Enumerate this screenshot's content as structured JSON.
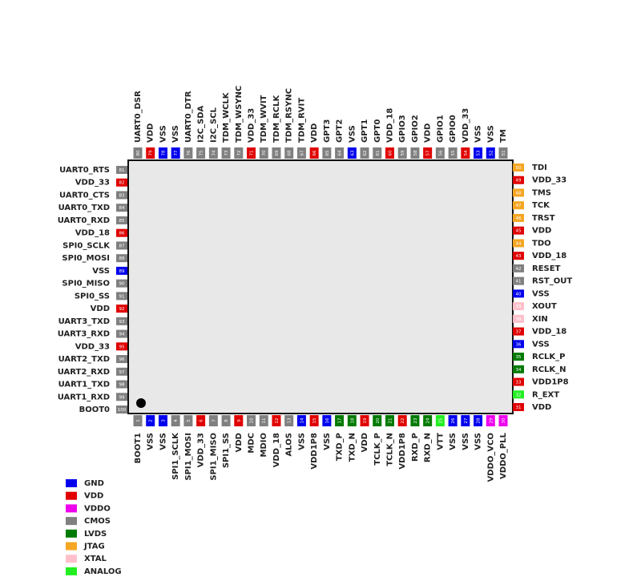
{
  "pins": [
    {
      "number": 1,
      "name": "BOOT1",
      "color": "#808080"
    },
    {
      "number": 2,
      "name": "VSS",
      "color": "#0000ee"
    },
    {
      "number": 3,
      "name": "VSS",
      "color": "#0000ee"
    },
    {
      "number": 4,
      "name": "SPI1_SCLK",
      "color": "#808080"
    },
    {
      "number": 5,
      "name": "SPI1_MOSI",
      "color": "#808080"
    },
    {
      "number": 6,
      "name": "VDD_33",
      "color": "#e00000"
    },
    {
      "number": 7,
      "name": "SPI1_MISO",
      "color": "#808080"
    },
    {
      "number": 8,
      "name": "SPI1_SS",
      "color": "#808080"
    },
    {
      "number": 9,
      "name": "VDD",
      "color": "#e00000"
    },
    {
      "number": 10,
      "name": "MDC",
      "color": "#808080"
    },
    {
      "number": 11,
      "name": "MDIO",
      "color": "#808080"
    },
    {
      "number": 12,
      "name": "VDD_18",
      "color": "#e00000"
    },
    {
      "number": 13,
      "name": "ALOS",
      "color": "#808080"
    },
    {
      "number": 14,
      "name": "VSS",
      "color": "#0000ee"
    },
    {
      "number": 15,
      "name": "VDD1P8",
      "color": "#e00000"
    },
    {
      "number": 16,
      "name": "VSS",
      "color": "#0000ee"
    },
    {
      "number": 17,
      "name": "TXD_P",
      "color": "#007a00"
    },
    {
      "number": 18,
      "name": "TXD_N",
      "color": "#007a00"
    },
    {
      "number": 19,
      "name": "VDD",
      "color": "#e00000"
    },
    {
      "number": 20,
      "name": "TCLK_P",
      "color": "#007a00"
    },
    {
      "number": 21,
      "name": "TCLK_N",
      "color": "#007a00"
    },
    {
      "number": 22,
      "name": "VDD1P8",
      "color": "#e00000"
    },
    {
      "number": 23,
      "name": "RXD_P",
      "color": "#007a00"
    },
    {
      "number": 24,
      "name": "RXD_N",
      "color": "#007a00"
    },
    {
      "number": 25,
      "name": "VTT",
      "color": "#22ee22"
    },
    {
      "number": 26,
      "name": "VSS",
      "color": "#0000ee"
    },
    {
      "number": 27,
      "name": "VSS",
      "color": "#0000ee"
    },
    {
      "number": 28,
      "name": "VSS",
      "color": "#0000ee"
    },
    {
      "number": 29,
      "name": "VDDO_VCO",
      "color": "#ee00ee"
    },
    {
      "number": 30,
      "name": "VDDO_PLL",
      "color": "#ee00ee"
    },
    {
      "number": 31,
      "name": "VDD",
      "color": "#e00000"
    },
    {
      "number": 32,
      "name": "R_EXT",
      "color": "#22ee22"
    },
    {
      "number": 33,
      "name": "VDD1P8",
      "color": "#e00000"
    },
    {
      "number": 34,
      "name": "RCLK_N",
      "color": "#007a00"
    },
    {
      "number": 35,
      "name": "RCLK_P",
      "color": "#007a00"
    },
    {
      "number": 36,
      "name": "VSS",
      "color": "#0000ee"
    },
    {
      "number": 37,
      "name": "VDD_18",
      "color": "#e00000"
    },
    {
      "number": 38,
      "name": "XIN",
      "color": "#ffc0cb"
    },
    {
      "number": 39,
      "name": "XOUT",
      "color": "#ffc0cb"
    },
    {
      "number": 40,
      "name": "VSS",
      "color": "#0000ee"
    },
    {
      "number": 41,
      "name": "RST_OUT",
      "color": "#808080"
    },
    {
      "number": 42,
      "name": "RESET",
      "color": "#808080"
    },
    {
      "number": 43,
      "name": "VDD_18",
      "color": "#e00000"
    },
    {
      "number": 44,
      "name": "TDO",
      "color": "#f5a623"
    },
    {
      "number": 45,
      "name": "VDD",
      "color": "#e00000"
    },
    {
      "number": 46,
      "name": "TRST",
      "color": "#f5a623"
    },
    {
      "number": 47,
      "name": "TCK",
      "color": "#f5a623"
    },
    {
      "number": 48,
      "name": "TMS",
      "color": "#f5a623"
    },
    {
      "number": 49,
      "name": "VDD_33",
      "color": "#e00000"
    },
    {
      "number": 50,
      "name": "TDI",
      "color": "#f5a623"
    },
    {
      "number": 51,
      "name": "TM",
      "color": "#808080"
    },
    {
      "number": 52,
      "name": "VSS",
      "color": "#0000ee"
    },
    {
      "number": 53,
      "name": "VSS",
      "color": "#0000ee"
    },
    {
      "number": 54,
      "name": "VDD_33",
      "color": "#e00000"
    },
    {
      "number": 55,
      "name": "GPIO0",
      "color": "#808080"
    },
    {
      "number": 56,
      "name": "GPIO1",
      "color": "#808080"
    },
    {
      "number": 57,
      "name": "VDD",
      "color": "#e00000"
    },
    {
      "number": 58,
      "name": "GPIO2",
      "color": "#808080"
    },
    {
      "number": 59,
      "name": "GPIO3",
      "color": "#808080"
    },
    {
      "number": 60,
      "name": "VDD_18",
      "color": "#e00000"
    },
    {
      "number": 61,
      "name": "GPT0",
      "color": "#808080"
    },
    {
      "number": 62,
      "name": "GPT1",
      "color": "#808080"
    },
    {
      "number": 63,
      "name": "VSS",
      "color": "#0000ee"
    },
    {
      "number": 64,
      "name": "GPT2",
      "color": "#808080"
    },
    {
      "number": 65,
      "name": "GPT3",
      "color": "#808080"
    },
    {
      "number": 66,
      "name": "VDD",
      "color": "#e00000"
    },
    {
      "number": 67,
      "name": "TDM_RVIT",
      "color": "#808080"
    },
    {
      "number": 68,
      "name": "TDM_RSYNC",
      "color": "#808080"
    },
    {
      "number": 69,
      "name": "TDM_RCLK",
      "color": "#808080"
    },
    {
      "number": 70,
      "name": "TDM_WVIT",
      "color": "#808080"
    },
    {
      "number": 71,
      "name": "VDD_33",
      "color": "#e00000"
    },
    {
      "number": 72,
      "name": "TDM_WSYNC",
      "color": "#808080"
    },
    {
      "number": 73,
      "name": "TDM_WCLK",
      "color": "#808080"
    },
    {
      "number": 74,
      "name": "I2C_SCL",
      "color": "#808080"
    },
    {
      "number": 75,
      "name": "I2C_SDA",
      "color": "#808080"
    },
    {
      "number": 76,
      "name": "UART0_DTR",
      "color": "#808080"
    },
    {
      "number": 77,
      "name": "VSS",
      "color": "#0000ee"
    },
    {
      "number": 78,
      "name": "VSS",
      "color": "#0000ee"
    },
    {
      "number": 79,
      "name": "VDD",
      "color": "#e00000"
    },
    {
      "number": 80,
      "name": "UART0_DSR",
      "color": "#808080"
    },
    {
      "number": 81,
      "name": "UART0_RTS",
      "color": "#808080"
    },
    {
      "number": 82,
      "name": "VDD_33",
      "color": "#e00000"
    },
    {
      "number": 83,
      "name": "UART0_CTS",
      "color": "#808080"
    },
    {
      "number": 84,
      "name": "UART0_TXD",
      "color": "#808080"
    },
    {
      "number": 85,
      "name": "UART0_RXD",
      "color": "#808080"
    },
    {
      "number": 86,
      "name": "VDD_18",
      "color": "#e00000"
    },
    {
      "number": 87,
      "name": "SPI0_SCLK",
      "color": "#808080"
    },
    {
      "number": 88,
      "name": "SPI0_MOSI",
      "color": "#808080"
    },
    {
      "number": 89,
      "name": "VSS",
      "color": "#0000ee"
    },
    {
      "number": 90,
      "name": "SPI0_MISO",
      "color": "#808080"
    },
    {
      "number": 91,
      "name": "SPI0_SS",
      "color": "#808080"
    },
    {
      "number": 92,
      "name": "VDD",
      "color": "#e00000"
    },
    {
      "number": 93,
      "name": "UART3_TXD",
      "color": "#808080"
    },
    {
      "number": 94,
      "name": "UART3_RXD",
      "color": "#808080"
    },
    {
      "number": 95,
      "name": "VDD_33",
      "color": "#e00000"
    },
    {
      "number": 96,
      "name": "UART2_TXD",
      "color": "#808080"
    },
    {
      "number": 97,
      "name": "UART2_RXD",
      "color": "#808080"
    },
    {
      "number": 98,
      "name": "UART1_TXD",
      "color": "#808080"
    },
    {
      "number": 99,
      "name": "UART1_RXD",
      "color": "#808080"
    },
    {
      "number": 100,
      "name": "BOOT0",
      "color": "#808080"
    }
  ],
  "legend": [
    {
      "label": "GND",
      "color": "#0000ee"
    },
    {
      "label": "VDD",
      "color": "#e00000"
    },
    {
      "label": "VDDO",
      "color": "#ee00ee"
    },
    {
      "label": "CMOS",
      "color": "#808080"
    },
    {
      "label": "LVDS",
      "color": "#007a00"
    },
    {
      "label": "JTAG",
      "color": "#f5a623"
    },
    {
      "label": "XTAL",
      "color": "#ffc0cb"
    },
    {
      "label": "ANALOG",
      "color": "#22ee22"
    }
  ]
}
